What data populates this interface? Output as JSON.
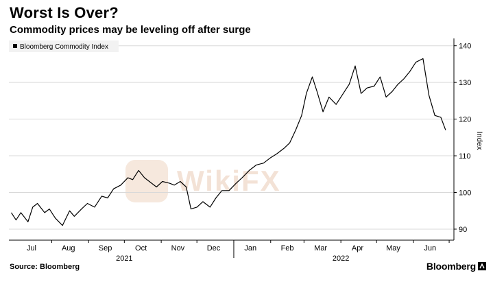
{
  "header": {
    "title": "Worst Is Over?",
    "subtitle": "Commodity prices may be leveling off after surge"
  },
  "footer": {
    "source": "Source: Bloomberg",
    "brand": "Bloomberg"
  },
  "watermark": {
    "text": "WikiFX"
  },
  "colors": {
    "line": "#000000",
    "grid": "#d9d9d9",
    "watermark": "#f3e2d6"
  },
  "chart_data": {
    "type": "line",
    "ylabel": "Index",
    "ylim": [
      87,
      142
    ],
    "yticks": [
      90,
      100,
      110,
      120,
      130,
      140
    ],
    "grid": "horizontal",
    "legend_position": "top-left",
    "x_axis": {
      "months": [
        {
          "label": "Jul",
          "x": "2021-07-15"
        },
        {
          "label": "Aug",
          "x": "2021-08-15"
        },
        {
          "label": "Sep",
          "x": "2021-09-15"
        },
        {
          "label": "Oct",
          "x": "2021-10-15"
        },
        {
          "label": "Nov",
          "x": "2021-11-15"
        },
        {
          "label": "Dec",
          "x": "2021-12-15"
        },
        {
          "label": "Jan",
          "x": "2022-01-15"
        },
        {
          "label": "Feb",
          "x": "2022-02-15"
        },
        {
          "label": "Mar",
          "x": "2022-03-15"
        },
        {
          "label": "Apr",
          "x": "2022-04-15"
        },
        {
          "label": "May",
          "x": "2022-05-15"
        },
        {
          "label": "Jun",
          "x": "2022-06-15"
        }
      ],
      "years": [
        {
          "label": "2021",
          "x": "2021-10-01"
        },
        {
          "label": "2022",
          "x": "2022-04-01"
        }
      ]
    },
    "series": [
      {
        "name": "Bloomberg Commodity Index",
        "x": [
          "2021-06-28",
          "2021-07-02",
          "2021-07-06",
          "2021-07-12",
          "2021-07-16",
          "2021-07-20",
          "2021-07-26",
          "2021-07-30",
          "2021-08-04",
          "2021-08-10",
          "2021-08-16",
          "2021-08-20",
          "2021-08-26",
          "2021-08-31",
          "2021-09-06",
          "2021-09-12",
          "2021-09-17",
          "2021-09-22",
          "2021-09-28",
          "2021-10-04",
          "2021-10-08",
          "2021-10-13",
          "2021-10-18",
          "2021-10-22",
          "2021-10-28",
          "2021-11-02",
          "2021-11-08",
          "2021-11-12",
          "2021-11-17",
          "2021-11-22",
          "2021-11-26",
          "2021-12-01",
          "2021-12-06",
          "2021-12-12",
          "2021-12-17",
          "2021-12-22",
          "2021-12-28",
          "2022-01-03",
          "2022-01-08",
          "2022-01-14",
          "2022-01-20",
          "2022-01-26",
          "2022-02-01",
          "2022-02-06",
          "2022-02-12",
          "2022-02-17",
          "2022-02-22",
          "2022-02-27",
          "2022-03-03",
          "2022-03-08",
          "2022-03-12",
          "2022-03-17",
          "2022-03-22",
          "2022-03-28",
          "2022-04-03",
          "2022-04-08",
          "2022-04-13",
          "2022-04-18",
          "2022-04-23",
          "2022-04-29",
          "2022-05-04",
          "2022-05-09",
          "2022-05-14",
          "2022-05-19",
          "2022-05-24",
          "2022-05-29",
          "2022-06-03",
          "2022-06-09",
          "2022-06-14",
          "2022-06-19",
          "2022-06-24",
          "2022-06-28"
        ],
        "values": [
          94.5,
          92.5,
          94.5,
          92.0,
          96.0,
          97.0,
          94.5,
          95.5,
          93.0,
          91.0,
          95.0,
          93.5,
          95.5,
          97.0,
          96.0,
          99.0,
          98.5,
          101.0,
          102.0,
          104.0,
          103.5,
          106.0,
          104.0,
          103.0,
          101.5,
          103.0,
          102.5,
          102.0,
          103.0,
          101.5,
          95.5,
          96.0,
          97.5,
          96.0,
          98.5,
          100.5,
          100.5,
          102.5,
          104.0,
          106.0,
          107.5,
          108.0,
          109.5,
          110.5,
          112.0,
          113.5,
          117.0,
          121.0,
          127.0,
          131.5,
          127.5,
          122.0,
          126.0,
          124.0,
          127.0,
          129.5,
          134.5,
          127.0,
          128.5,
          129.0,
          131.5,
          126.0,
          127.5,
          129.5,
          131.0,
          133.0,
          135.5,
          136.5,
          126.5,
          121.0,
          120.5,
          117.0
        ]
      }
    ]
  }
}
